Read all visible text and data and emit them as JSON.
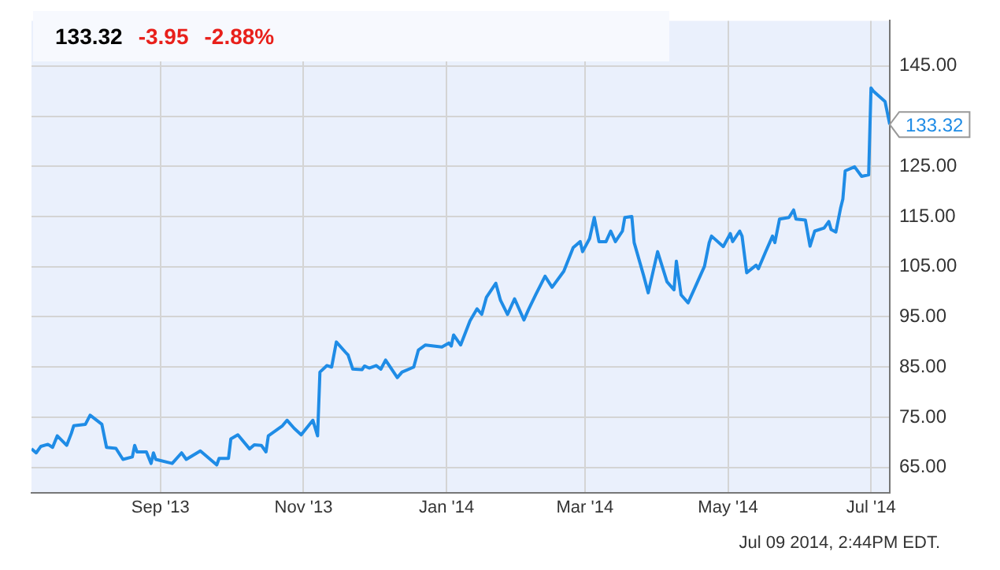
{
  "chart_data": {
    "type": "line",
    "x": [
      "2013-07-08",
      "2013-07-10",
      "2013-07-12",
      "2013-07-15",
      "2013-07-17",
      "2013-07-19",
      "2013-07-23",
      "2013-07-25",
      "2013-07-26",
      "2013-07-31",
      "2013-08-02",
      "2013-08-07",
      "2013-08-09",
      "2013-08-13",
      "2013-08-16",
      "2013-08-20",
      "2013-08-21",
      "2013-08-22",
      "2013-08-26",
      "2013-08-28",
      "2013-08-29",
      "2013-08-30",
      "2013-09-06",
      "2013-09-10",
      "2013-09-12",
      "2013-09-18",
      "2013-09-25",
      "2013-09-26",
      "2013-09-30",
      "2013-10-01",
      "2013-10-04",
      "2013-10-09",
      "2013-10-11",
      "2013-10-14",
      "2013-10-16",
      "2013-10-17",
      "2013-10-23",
      "2013-10-25",
      "2013-10-28",
      "2013-10-31",
      "2013-11-05",
      "2013-11-07",
      "2013-11-08",
      "2013-11-11",
      "2013-11-13",
      "2013-11-15",
      "2013-11-19",
      "2013-11-20",
      "2013-11-22",
      "2013-11-26",
      "2013-11-27",
      "2013-11-29",
      "2013-12-02",
      "2013-12-04",
      "2013-12-06",
      "2013-12-11",
      "2013-12-13",
      "2013-12-18",
      "2013-12-20",
      "2013-12-23",
      "2013-12-30",
      "2014-01-02",
      "2014-01-03",
      "2014-01-04",
      "2014-01-07",
      "2014-01-11",
      "2014-01-14",
      "2014-01-16",
      "2014-01-18",
      "2014-01-22",
      "2014-01-24",
      "2014-01-27",
      "2014-01-30",
      "2014-02-03",
      "2014-02-05",
      "2014-02-08",
      "2014-02-12",
      "2014-02-15",
      "2014-02-20",
      "2014-02-24",
      "2014-02-27",
      "2014-02-28",
      "2014-03-03",
      "2014-03-05",
      "2014-03-07",
      "2014-03-10",
      "2014-03-12",
      "2014-03-14",
      "2014-03-17",
      "2014-03-18",
      "2014-03-21",
      "2014-03-22",
      "2014-03-26",
      "2014-03-28",
      "2014-04-01",
      "2014-04-05",
      "2014-04-08",
      "2014-04-09",
      "2014-04-11",
      "2014-04-14",
      "2014-04-17",
      "2014-04-21",
      "2014-04-23",
      "2014-04-24",
      "2014-04-29",
      "2014-05-02",
      "2014-05-03",
      "2014-05-06",
      "2014-05-07",
      "2014-05-09",
      "2014-05-13",
      "2014-05-14",
      "2014-05-17",
      "2014-05-20",
      "2014-05-21",
      "2014-05-23",
      "2014-05-27",
      "2014-05-29",
      "2014-05-30",
      "2014-06-03",
      "2014-06-05",
      "2014-06-07",
      "2014-06-11",
      "2014-06-13",
      "2014-06-14",
      "2014-06-16",
      "2014-06-18",
      "2014-06-19",
      "2014-06-20",
      "2014-06-24",
      "2014-06-27",
      "2014-06-30",
      "2014-07-01",
      "2014-07-02",
      "2014-07-07",
      "2014-07-09"
    ],
    "series": [
      {
        "color": "#1f8ce6",
        "values": [
          68.7,
          67.9,
          69.2,
          69.6,
          69.0,
          71.3,
          69.4,
          71.8,
          73.3,
          73.6,
          75.4,
          73.6,
          69.0,
          68.8,
          66.6,
          67.1,
          69.4,
          68.1,
          68.1,
          65.8,
          67.9,
          66.6,
          65.8,
          67.9,
          66.6,
          68.3,
          65.5,
          66.8,
          66.8,
          70.7,
          71.5,
          68.7,
          69.5,
          69.4,
          68.1,
          71.3,
          73.3,
          74.4,
          72.8,
          71.5,
          74.4,
          71.3,
          84.0,
          85.3,
          85.0,
          90.0,
          87.9,
          87.4,
          84.6,
          84.5,
          85.2,
          84.8,
          85.3,
          84.6,
          86.4,
          82.9,
          84.0,
          85.0,
          88.4,
          89.4,
          89.0,
          89.8,
          89.2,
          91.4,
          89.4,
          94.2,
          96.6,
          95.5,
          98.9,
          101.7,
          98.3,
          95.5,
          98.6,
          94.4,
          96.5,
          99.4,
          103.1,
          100.9,
          104.1,
          108.8,
          110.0,
          108.0,
          110.6,
          114.8,
          110.0,
          110.0,
          112.1,
          110.0,
          112.1,
          114.8,
          115.0,
          109.8,
          103.3,
          99.8,
          108.0,
          102.0,
          100.4,
          106.1,
          99.4,
          97.8,
          100.9,
          105.1,
          109.8,
          111.1,
          109.0,
          111.6,
          110.0,
          112.1,
          111.1,
          103.8,
          105.3,
          104.6,
          107.9,
          111.1,
          109.8,
          114.5,
          114.8,
          116.3,
          114.5,
          114.3,
          109.1,
          112.1,
          112.7,
          114.0,
          112.4,
          111.9,
          116.6,
          118.5,
          124.1,
          124.9,
          123.0,
          123.3,
          140.6,
          140.0,
          137.9,
          133.32
        ]
      }
    ],
    "xlim": [
      "2013-07-08",
      "2014-07-09"
    ],
    "xticks": [
      {
        "value": "2013-09-01",
        "label": "Sep '13"
      },
      {
        "value": "2013-11-01",
        "label": "Nov '13"
      },
      {
        "value": "2014-01-01",
        "label": "Jan '14"
      },
      {
        "value": "2014-03-01",
        "label": "Mar '14"
      },
      {
        "value": "2014-05-01",
        "label": "May '14"
      },
      {
        "value": "2014-07-01",
        "label": "Jul '14"
      }
    ],
    "ylim": [
      60,
      154
    ],
    "yticks": [
      {
        "value": 65,
        "label": "65.00"
      },
      {
        "value": 75,
        "label": "75.00"
      },
      {
        "value": 85,
        "label": "85.00"
      },
      {
        "value": 95,
        "label": "95.00"
      },
      {
        "value": 105,
        "label": "105.00"
      },
      {
        "value": 115,
        "label": "115.00"
      },
      {
        "value": 125,
        "label": "125.00"
      },
      {
        "value": 135,
        "label": null
      },
      {
        "value": 145,
        "label": "145.00"
      }
    ],
    "grid": true,
    "marker": "none",
    "line_style": "solid",
    "legend": false,
    "annotations": [
      "133.32",
      "-3.95",
      "-2.88%",
      "Jul 09 2014, 2:44PM EDT.",
      {
        "text": "133.32",
        "x": "2014-07-09",
        "y": 133.32
      }
    ]
  }
}
